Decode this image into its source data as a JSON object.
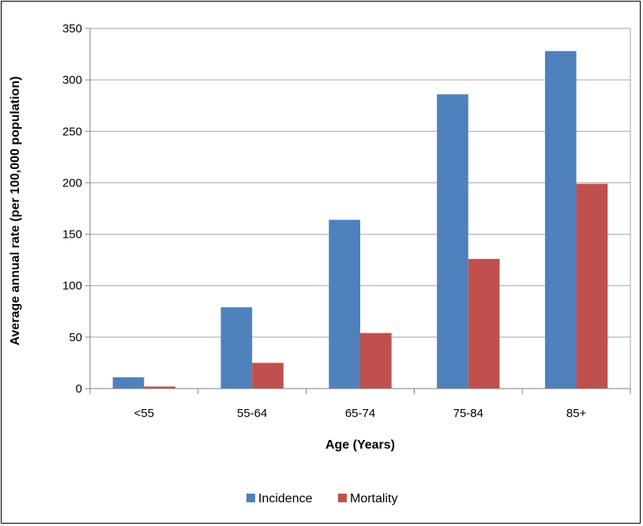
{
  "chart_data": {
    "type": "bar",
    "categories": [
      "<55",
      "55-64",
      "65-74",
      "75-84",
      "85+"
    ],
    "series": [
      {
        "name": "Incidence",
        "color": "#4f81bd",
        "values": [
          11,
          79,
          164,
          286,
          328
        ]
      },
      {
        "name": "Mortality",
        "color": "#c0504d",
        "values": [
          2,
          25,
          54,
          126,
          199
        ]
      }
    ],
    "title": "",
    "xlabel": "Age (Years)",
    "ylabel": "Average annual rate (per 100,000 population)",
    "ylim": [
      0,
      350
    ],
    "yticks": [
      0,
      50,
      100,
      150,
      200,
      250,
      300,
      350
    ],
    "grid": true,
    "legend_position": "bottom"
  }
}
